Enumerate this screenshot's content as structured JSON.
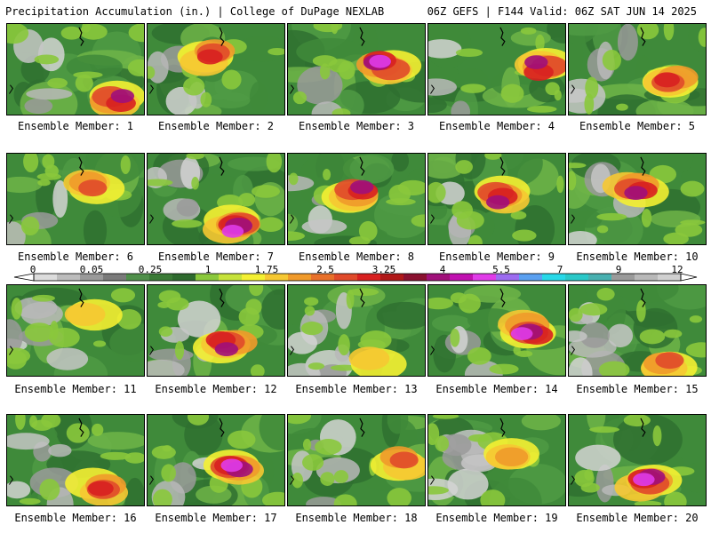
{
  "header": {
    "left": "Precipitation Accumulation (in.) | College of DuPage NEXLAB",
    "right": "06Z GEFS | F144 Valid: 06Z SAT JUN 14 2025"
  },
  "colorbar": {
    "labels": [
      "0",
      "0.05",
      "0.25",
      "1",
      "1.75",
      "2.5",
      "3.25",
      "4",
      "5.5",
      "7",
      "9",
      "12"
    ],
    "colors": [
      "#dcdcdc",
      "#bcbcbc",
      "#9a9a9a",
      "#7a7a7a",
      "#4f8f4a",
      "#3a7a36",
      "#2e6a2e",
      "#8ac83c",
      "#c6e23a",
      "#f4f032",
      "#f6c832",
      "#f09a2a",
      "#e8702a",
      "#e04a2a",
      "#d82020",
      "#b01818",
      "#8a1030",
      "#a0107a",
      "#c010b0",
      "#e03ce8",
      "#9c6cf0",
      "#5aa0f0",
      "#28d8e8",
      "#2ac8c8",
      "#48b0b0",
      "#9a9a9a",
      "#b8b8b8",
      "#d0d0d0"
    ]
  },
  "members": [
    {
      "label": "Ensemble Member: 1",
      "hot": 0.8,
      "dry": 0.4
    },
    {
      "label": "Ensemble Member: 2",
      "hot": 0.6,
      "dry": 0.5
    },
    {
      "label": "Ensemble Member: 3",
      "hot": 0.9,
      "dry": 0.2
    },
    {
      "label": "Ensemble Member: 4",
      "hot": 0.8,
      "dry": 0.3
    },
    {
      "label": "Ensemble Member: 5",
      "hot": 0.6,
      "dry": 0.5
    },
    {
      "label": "Ensemble Member: 6",
      "hot": 0.5,
      "dry": 0.3
    },
    {
      "label": "Ensemble Member: 7",
      "hot": 0.9,
      "dry": 0.5
    },
    {
      "label": "Ensemble Member: 8",
      "hot": 0.8,
      "dry": 0.4
    },
    {
      "label": "Ensemble Member: 9",
      "hot": 0.8,
      "dry": 0.3
    },
    {
      "label": "Ensemble Member: 10",
      "hot": 0.7,
      "dry": 0.4
    },
    {
      "label": "Ensemble Member: 11",
      "hot": 0.3,
      "dry": 0.6
    },
    {
      "label": "Ensemble Member: 12",
      "hot": 0.8,
      "dry": 0.6
    },
    {
      "label": "Ensemble Member: 13",
      "hot": 0.3,
      "dry": 0.8
    },
    {
      "label": "Ensemble Member: 14",
      "hot": 0.9,
      "dry": 0.3
    },
    {
      "label": "Ensemble Member: 15",
      "hot": 0.5,
      "dry": 0.8
    },
    {
      "label": "Ensemble Member: 16",
      "hot": 0.6,
      "dry": 0.6
    },
    {
      "label": "Ensemble Member: 17",
      "hot": 0.9,
      "dry": 0.3
    },
    {
      "label": "Ensemble Member: 18",
      "hot": 0.5,
      "dry": 0.5
    },
    {
      "label": "Ensemble Member: 19",
      "hot": 0.4,
      "dry": 0.9
    },
    {
      "label": "Ensemble Member: 20",
      "hot": 0.9,
      "dry": 0.3
    }
  ]
}
